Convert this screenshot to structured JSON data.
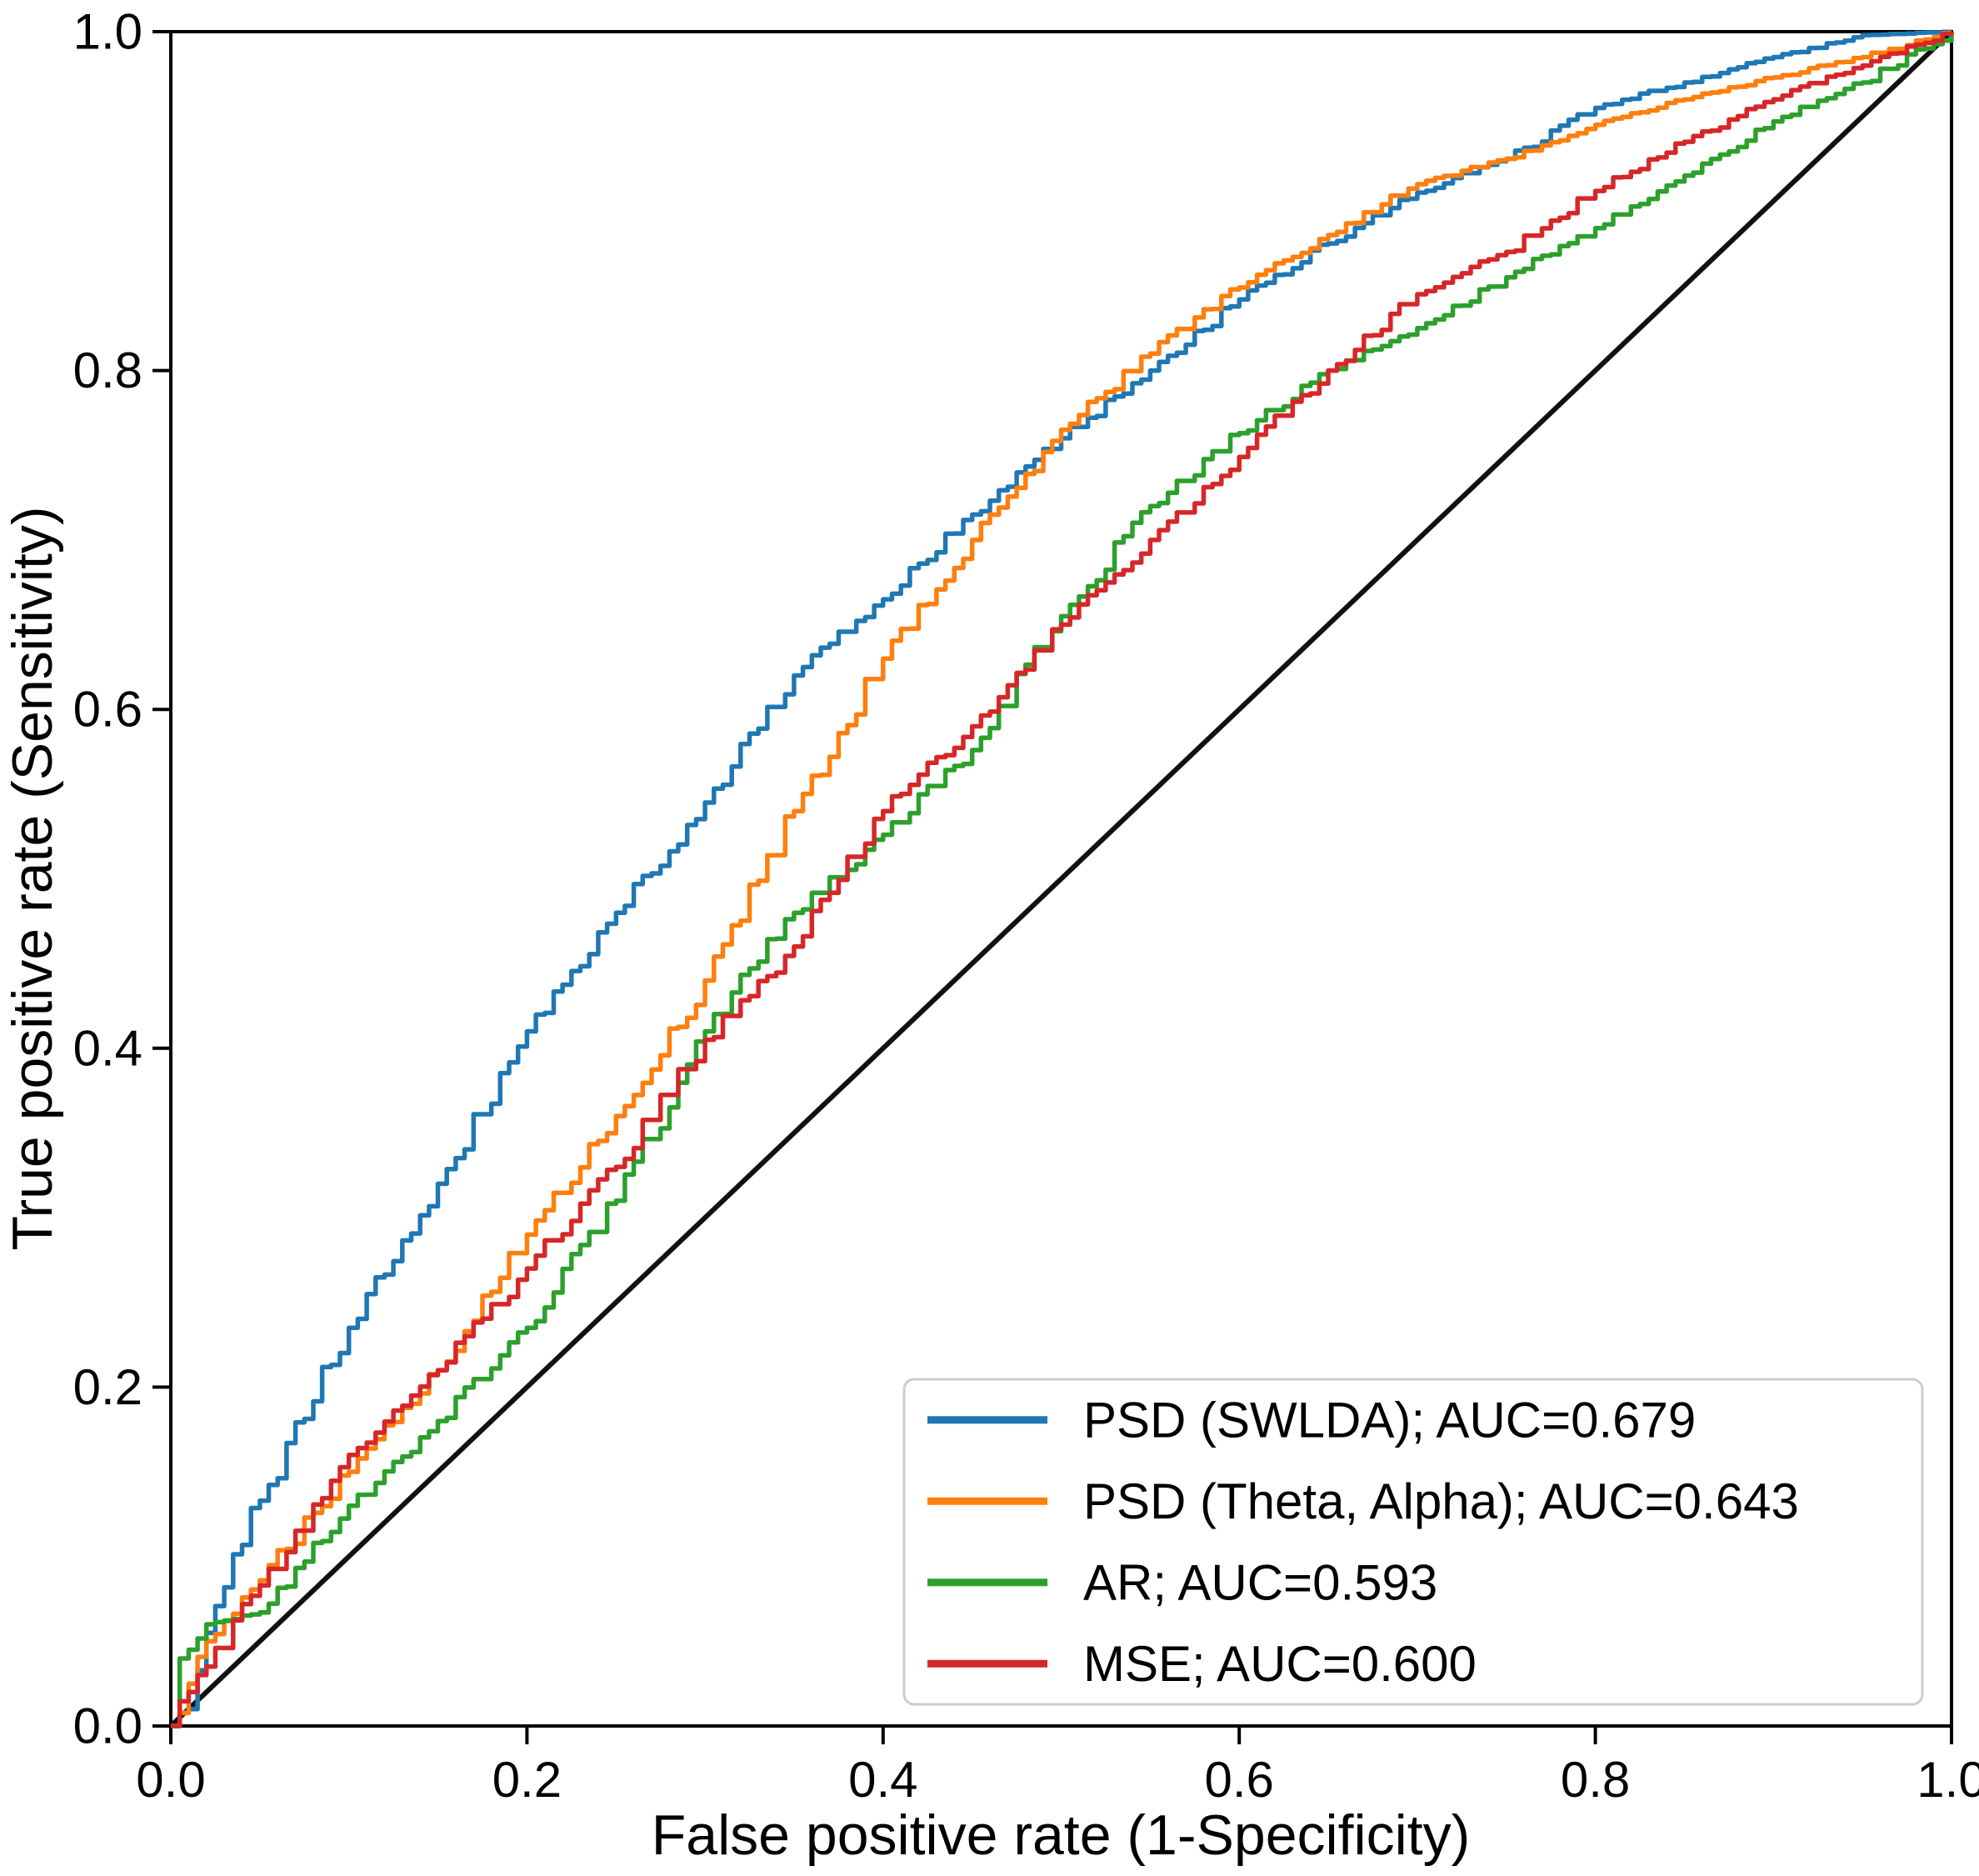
{
  "figure": {
    "xlabel": "False positive rate (1-Specificity)",
    "ylabel": "True positive rate (Sensitivity)",
    "background_color": "#ffffff",
    "spine_color": "#000000",
    "reference_line_color": "#111111",
    "legend_border_color": "#cccccc",
    "legend_background": "#ffffff"
  },
  "chart_data": {
    "type": "line",
    "subtype": "roc-curves",
    "title": "",
    "xlabel": "False positive rate (1-Specificity)",
    "ylabel": "True positive rate (Sensitivity)",
    "xlim": [
      0.0,
      1.0
    ],
    "ylim": [
      0.0,
      1.0
    ],
    "x_ticks": [
      "0.0",
      "0.2",
      "0.4",
      "0.6",
      "0.8",
      "1.0"
    ],
    "y_ticks": [
      "0.0",
      "0.2",
      "0.4",
      "0.6",
      "0.8",
      "1.0"
    ],
    "grid": false,
    "legend_position": "lower right",
    "diagonal_reference": {
      "from": [
        0,
        0
      ],
      "to": [
        1,
        1
      ],
      "color": "#111111"
    },
    "x": [
      0,
      0.01,
      0.02,
      0.05,
      0.1,
      0.15,
      0.2,
      0.25,
      0.3,
      0.35,
      0.4,
      0.45,
      0.5,
      0.55,
      0.6,
      0.65,
      0.7,
      0.75,
      0.8,
      0.85,
      0.9,
      0.95,
      1.0
    ],
    "series": [
      {
        "name": "PSD (SWLDA)",
        "auc": 0.679,
        "legend_label": "PSD (SWLDA); AUC=0.679",
        "color": "#1f77b4",
        "y": [
          0,
          0.01,
          0.055,
          0.133,
          0.235,
          0.32,
          0.41,
          0.48,
          0.545,
          0.62,
          0.665,
          0.715,
          0.76,
          0.8,
          0.842,
          0.875,
          0.905,
          0.925,
          0.955,
          0.97,
          0.985,
          0.998,
          1.0
        ]
      },
      {
        "name": "PSD (Theta, Alpha)",
        "auc": 0.643,
        "legend_label": "PSD (Theta, Alpha); AUC=0.643",
        "color": "#ff7f0e",
        "y": [
          0,
          0.025,
          0.05,
          0.086,
          0.15,
          0.21,
          0.29,
          0.36,
          0.44,
          0.54,
          0.63,
          0.7,
          0.765,
          0.81,
          0.849,
          0.88,
          0.91,
          0.925,
          0.945,
          0.96,
          0.973,
          0.985,
          1.0
        ]
      },
      {
        "name": "AR",
        "auc": 0.593,
        "legend_label": "AR; AUC=0.593",
        "color": "#2ca02c",
        "y": [
          0,
          0.045,
          0.06,
          0.067,
          0.13,
          0.18,
          0.235,
          0.31,
          0.41,
          0.48,
          0.526,
          0.576,
          0.655,
          0.72,
          0.763,
          0.8,
          0.825,
          0.855,
          0.884,
          0.915,
          0.947,
          0.97,
          1.0
        ]
      },
      {
        "name": "MSE",
        "auc": 0.6,
        "legend_label": "MSE; AUC=0.600",
        "color": "#d62728",
        "y": [
          0,
          0.02,
          0.035,
          0.083,
          0.16,
          0.21,
          0.27,
          0.33,
          0.405,
          0.46,
          0.54,
          0.59,
          0.65,
          0.7,
          0.749,
          0.8,
          0.845,
          0.87,
          0.906,
          0.935,
          0.96,
          0.98,
          1.0
        ]
      }
    ]
  }
}
